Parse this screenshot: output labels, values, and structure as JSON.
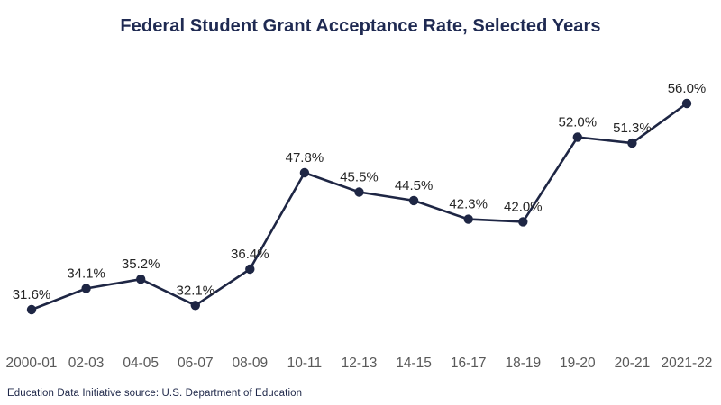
{
  "title": "Federal Student Grant Acceptance Rate, Selected Years",
  "source_note": "Education Data Initiative source: U.S. Department of Education",
  "colors": {
    "background": "#ffffff",
    "title": "#1f2a52",
    "line": "#1e2644",
    "marker": "#1e2644",
    "data_label": "#262626",
    "axis_label": "#595959",
    "source": "#1e2749"
  },
  "chart_data": {
    "type": "line",
    "title": "Federal Student Grant Acceptance Rate, Selected Years",
    "categories": [
      "2000-01",
      "02-03",
      "04-05",
      "06-07",
      "08-09",
      "10-11",
      "12-13",
      "14-15",
      "16-17",
      "18-19",
      "19-20",
      "20-21",
      "2021-22"
    ],
    "values": [
      31.6,
      34.1,
      35.2,
      32.1,
      36.4,
      47.8,
      45.5,
      44.5,
      42.3,
      42.0,
      52.0,
      51.3,
      56.0
    ],
    "point_labels": [
      "31.6%",
      "34.1%",
      "35.2%",
      "32.1%",
      "36.4%",
      "47.8%",
      "45.5%",
      "44.5%",
      "42.3%",
      "42.0%",
      "52.0%",
      "51.3%",
      "56.0%"
    ],
    "xlabel": "",
    "ylabel": "",
    "ylim": [
      31.6,
      56.0
    ],
    "grid": false,
    "legend": false,
    "source": "Education Data Initiative source: U.S. Department of Education"
  }
}
